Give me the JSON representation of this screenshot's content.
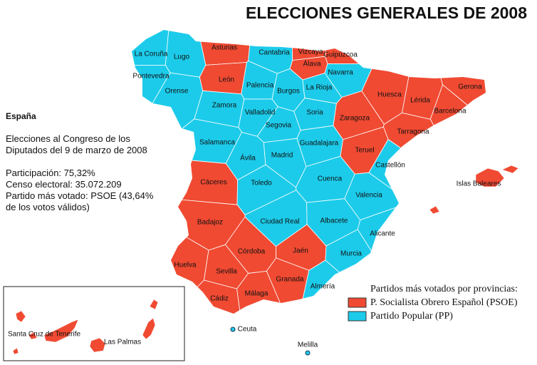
{
  "title": "ELECCIONES GENERALES DE 2008",
  "info": {
    "country": "España",
    "election": "Elecciones al Congreso de los Diputados del 9 de marzo de 2008",
    "participation": "Participación: 75,32%",
    "census": "Censo electoral: 35.072.209",
    "most_voted": "Partido más votado: PSOE (43,64% de los votos válidos)"
  },
  "provinces": [
    {
      "label": "La Coruña",
      "color": "#1ccbea"
    },
    {
      "label": "Lugo",
      "color": "#1ccbea"
    },
    {
      "label": "Pontevedra",
      "color": "#1ccbea"
    },
    {
      "label": "Orense",
      "color": "#1ccbea"
    },
    {
      "label": "Asturias",
      "color": "#f04a32"
    },
    {
      "label": "Cantabria",
      "color": "#1ccbea"
    },
    {
      "label": "Vizcaya",
      "color": "#f04a32"
    },
    {
      "label": "Guipúzcoa",
      "color": "#f04a32"
    },
    {
      "label": "Álava",
      "color": "#f04a32"
    },
    {
      "label": "Navarra",
      "color": "#1ccbea"
    },
    {
      "label": "León",
      "color": "#f04a32"
    },
    {
      "label": "Palencia",
      "color": "#1ccbea"
    },
    {
      "label": "Burgos",
      "color": "#1ccbea"
    },
    {
      "label": "La Rioja",
      "color": "#1ccbea"
    },
    {
      "label": "Huesca",
      "color": "#f04a32"
    },
    {
      "label": "Lérida",
      "color": "#f04a32"
    },
    {
      "label": "Gerona",
      "color": "#f04a32"
    },
    {
      "label": "Barcelona",
      "color": "#f04a32"
    },
    {
      "label": "Zamora",
      "color": "#1ccbea"
    },
    {
      "label": "Valladolid",
      "color": "#1ccbea"
    },
    {
      "label": "Soria",
      "color": "#1ccbea"
    },
    {
      "label": "Zaragoza",
      "color": "#f04a32"
    },
    {
      "label": "Tarragona",
      "color": "#f04a32"
    },
    {
      "label": "Segovia",
      "color": "#1ccbea"
    },
    {
      "label": "Salamanca",
      "color": "#1ccbea"
    },
    {
      "label": "Ávila",
      "color": "#1ccbea"
    },
    {
      "label": "Madrid",
      "color": "#1ccbea"
    },
    {
      "label": "Guadalajara",
      "color": "#1ccbea"
    },
    {
      "label": "Teruel",
      "color": "#f04a32"
    },
    {
      "label": "Castellón",
      "color": "#1ccbea"
    },
    {
      "label": "Cáceres",
      "color": "#f04a32"
    },
    {
      "label": "Toledo",
      "color": "#1ccbea"
    },
    {
      "label": "Cuenca",
      "color": "#1ccbea"
    },
    {
      "label": "Valencia",
      "color": "#1ccbea"
    },
    {
      "label": "Badajoz",
      "color": "#f04a32"
    },
    {
      "label": "Ciudad Real",
      "color": "#1ccbea"
    },
    {
      "label": "Albacete",
      "color": "#1ccbea"
    },
    {
      "label": "Alicante",
      "color": "#1ccbea"
    },
    {
      "label": "Córdoba",
      "color": "#f04a32"
    },
    {
      "label": "Jaén",
      "color": "#f04a32"
    },
    {
      "label": "Murcia",
      "color": "#1ccbea"
    },
    {
      "label": "Huelva",
      "color": "#f04a32"
    },
    {
      "label": "Sevilla",
      "color": "#f04a32"
    },
    {
      "label": "Granada",
      "color": "#f04a32"
    },
    {
      "label": "Almería",
      "color": "#1ccbea"
    },
    {
      "label": "Cádiz",
      "color": "#f04a32"
    },
    {
      "label": "Málaga",
      "color": "#f04a32"
    },
    {
      "label": "Islas Baleares",
      "color": "#f04a32"
    },
    {
      "label": "Santa Cruz de Tenerife",
      "color": "#f04a32"
    },
    {
      "label": "Las Palmas",
      "color": "#f04a32"
    }
  ],
  "cities": [
    {
      "label": "Ceuta"
    },
    {
      "label": "Melilla"
    }
  ],
  "legend": {
    "title": "Partidos más votados por provincias:",
    "items": [
      {
        "label": "P. Socialista Obrero Español (PSOE)",
        "color": "#f04a32"
      },
      {
        "label": "Partido Popular (PP)",
        "color": "#1ccbea"
      }
    ]
  }
}
